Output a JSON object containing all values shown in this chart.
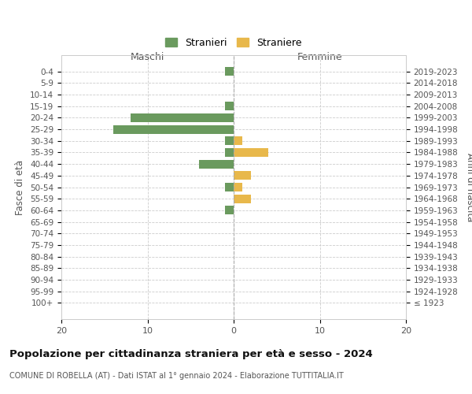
{
  "age_groups": [
    "0-4",
    "5-9",
    "10-14",
    "15-19",
    "20-24",
    "25-29",
    "30-34",
    "35-39",
    "40-44",
    "45-49",
    "50-54",
    "55-59",
    "60-64",
    "65-69",
    "70-74",
    "75-79",
    "80-84",
    "85-89",
    "90-94",
    "95-99",
    "100+"
  ],
  "birth_years": [
    "2019-2023",
    "2014-2018",
    "2009-2013",
    "2004-2008",
    "1999-2003",
    "1994-1998",
    "1989-1993",
    "1984-1988",
    "1979-1983",
    "1974-1978",
    "1969-1973",
    "1964-1968",
    "1959-1963",
    "1954-1958",
    "1949-1953",
    "1944-1948",
    "1939-1943",
    "1934-1938",
    "1929-1933",
    "1924-1928",
    "≤ 1923"
  ],
  "maschi": [
    1,
    0,
    0,
    1,
    12,
    14,
    1,
    1,
    4,
    0,
    1,
    0,
    1,
    0,
    0,
    0,
    0,
    0,
    0,
    0,
    0
  ],
  "femmine": [
    0,
    0,
    0,
    0,
    0,
    0,
    1,
    4,
    0,
    2,
    1,
    2,
    0,
    0,
    0,
    0,
    0,
    0,
    0,
    0,
    0
  ],
  "maschi_color": "#6a9a5e",
  "femmine_color": "#e8b84b",
  "title": "Popolazione per cittadinanza straniera per età e sesso - 2024",
  "subtitle": "COMUNE DI ROBELLA (AT) - Dati ISTAT al 1° gennaio 2024 - Elaborazione TUTTITALIA.IT",
  "xlabel_left": "Maschi",
  "xlabel_right": "Femmine",
  "ylabel_left": "Fasce di età",
  "ylabel_right": "Anni di nascita",
  "legend_maschi": "Stranieri",
  "legend_femmine": "Straniere",
  "xlim": 20,
  "background_color": "#ffffff",
  "grid_color": "#cccccc",
  "spine_color": "#cccccc",
  "centerline_color": "#aaaaaa"
}
